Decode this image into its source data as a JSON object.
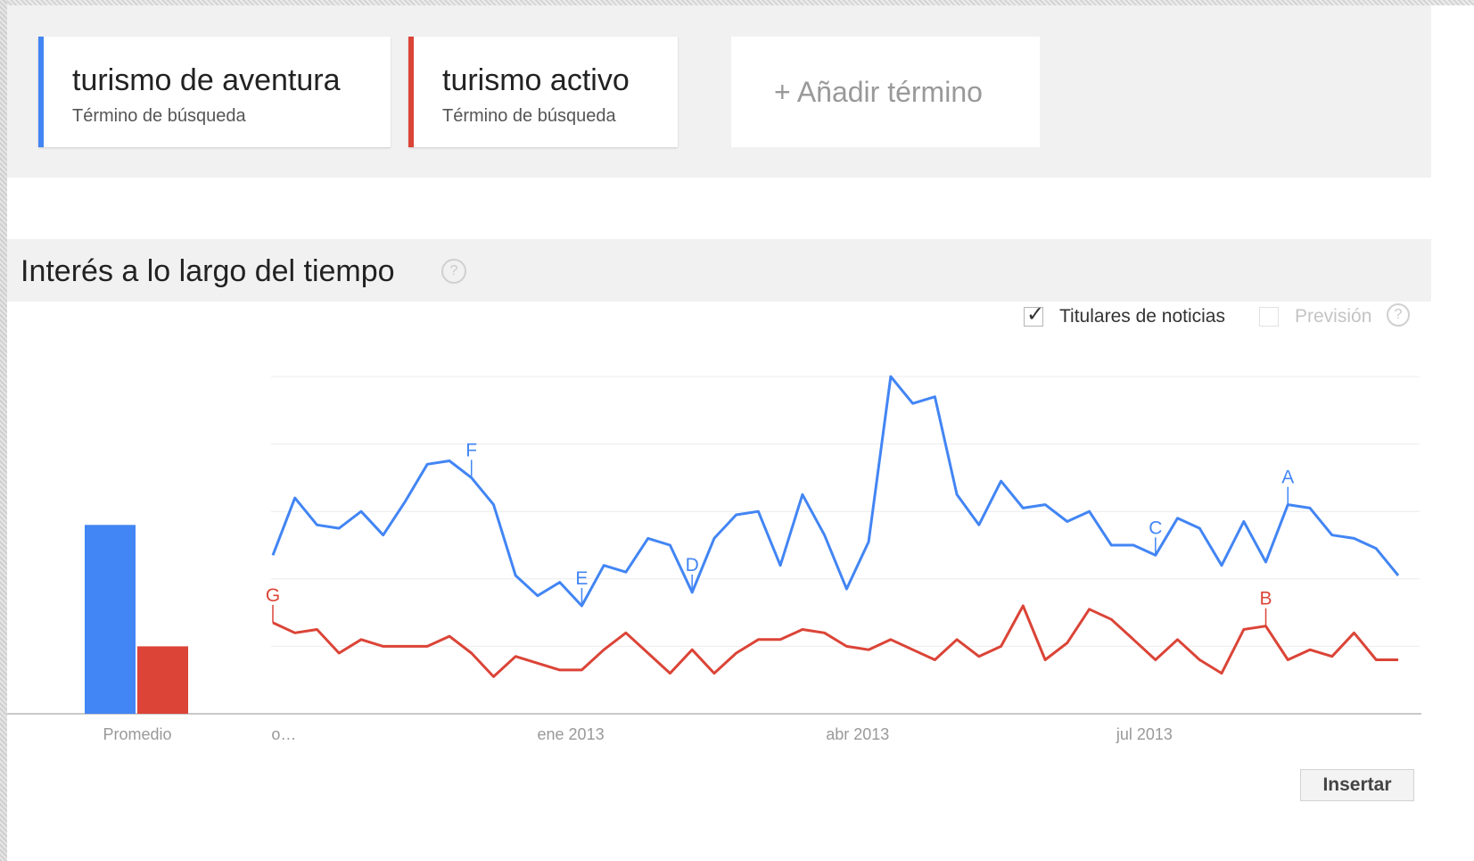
{
  "terms": [
    {
      "name": "turismo de aventura",
      "subtitle": "Término de búsqueda",
      "color": "#4285f4"
    },
    {
      "name": "turismo activo",
      "subtitle": "Término de búsqueda",
      "color": "#db4437"
    }
  ],
  "add_term_label": "+ Añadir término",
  "section": {
    "title": "Interés a lo largo del tiempo",
    "help": "?"
  },
  "options": {
    "news_headlines_label": "Titulares de noticias",
    "news_headlines_checked": true,
    "forecast_label": "Previsión",
    "forecast_checked": false,
    "forecast_help": "?"
  },
  "insert_label": "Insertar",
  "chart_data": [
    {
      "type": "bar",
      "categories": [
        "Promedio"
      ],
      "series": [
        {
          "name": "turismo de aventura",
          "values": [
            56
          ],
          "color": "#4285f4"
        },
        {
          "name": "turismo activo",
          "values": [
            20
          ],
          "color": "#db4437"
        }
      ],
      "ylim": [
        0,
        100
      ],
      "xlabel": "",
      "ylabel": ""
    },
    {
      "type": "line",
      "x_tick_labels": [
        "o…",
        "ene 2013",
        "abr 2013",
        "jul 2013"
      ],
      "x_tick_index": [
        0.5,
        13.5,
        26.5,
        39.5
      ],
      "grid": true,
      "ylim": [
        0,
        100
      ],
      "series": [
        {
          "name": "turismo de aventura",
          "color": "#4285f4",
          "values": [
            47,
            64,
            56,
            55,
            60,
            53,
            63,
            74,
            75,
            70,
            62,
            41,
            35,
            39,
            32,
            44,
            42,
            52,
            50,
            36,
            52,
            59,
            60,
            44,
            65,
            53,
            37,
            51,
            100,
            92,
            94,
            65,
            56,
            69,
            61,
            62,
            57,
            60,
            50,
            50,
            47,
            58,
            55,
            44,
            57,
            45,
            62,
            61,
            53,
            52,
            49,
            41
          ]
        },
        {
          "name": "turismo activo",
          "color": "#db4437",
          "values": [
            27,
            24,
            25,
            18,
            22,
            20,
            20,
            20,
            23,
            18,
            11,
            17,
            15,
            13,
            13,
            19,
            24,
            18,
            12,
            19,
            12,
            18,
            22,
            22,
            25,
            24,
            20,
            19,
            22,
            19,
            16,
            22,
            17,
            20,
            32,
            16,
            21,
            31,
            28,
            22,
            16,
            22,
            16,
            12,
            25,
            26,
            16,
            19,
            17,
            24,
            16,
            16
          ]
        }
      ],
      "annotations": [
        {
          "label": "G",
          "series": 1,
          "index": 0
        },
        {
          "label": "F",
          "series": 0,
          "index": 9
        },
        {
          "label": "E",
          "series": 0,
          "index": 14
        },
        {
          "label": "D",
          "series": 0,
          "index": 19
        },
        {
          "label": "C",
          "series": 0,
          "index": 40
        },
        {
          "label": "B",
          "series": 1,
          "index": 45
        },
        {
          "label": "A",
          "series": 0,
          "index": 46
        }
      ]
    }
  ]
}
